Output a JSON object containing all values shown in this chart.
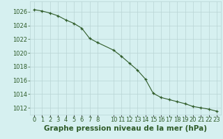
{
  "x": [
    0,
    1,
    2,
    3,
    4,
    5,
    6,
    7,
    8,
    10,
    11,
    12,
    13,
    14,
    15,
    16,
    17,
    18,
    19,
    20,
    21,
    22,
    23
  ],
  "y": [
    1026.3,
    1026.1,
    1025.8,
    1025.4,
    1024.8,
    1024.3,
    1023.6,
    1022.1,
    1021.5,
    1020.4,
    1019.5,
    1018.5,
    1017.5,
    1016.2,
    1014.1,
    1013.5,
    1013.2,
    1012.9,
    1012.6,
    1012.2,
    1012.0,
    1011.8,
    1011.5
  ],
  "ylabel_ticks": [
    1012,
    1014,
    1016,
    1018,
    1020,
    1022,
    1024,
    1026
  ],
  "xlabel_ticks": [
    0,
    1,
    2,
    3,
    4,
    5,
    6,
    7,
    8,
    10,
    11,
    12,
    13,
    14,
    15,
    16,
    17,
    18,
    19,
    20,
    21,
    22,
    23
  ],
  "xlabel_labels": [
    "0",
    "1",
    "2",
    "3",
    "4",
    "5",
    "6",
    "7",
    "8",
    "10",
    "11",
    "12",
    "13",
    "14",
    "15",
    "16",
    "17",
    "18",
    "19",
    "20",
    "21",
    "22",
    "23"
  ],
  "line_color": "#2d5a27",
  "marker": "+",
  "marker_size": 3.5,
  "background_color": "#d6f0f0",
  "grid_color": "#b8d4d4",
  "xlabel": "Graphe pression niveau de la mer (hPa)",
  "xlabel_color": "#2d5a27",
  "xlabel_fontsize": 7.5,
  "ylim": [
    1011.0,
    1027.5
  ],
  "xlim": [
    -0.5,
    23.5
  ],
  "tick_fontsize": 6.0,
  "tick_color": "#2d5a27"
}
